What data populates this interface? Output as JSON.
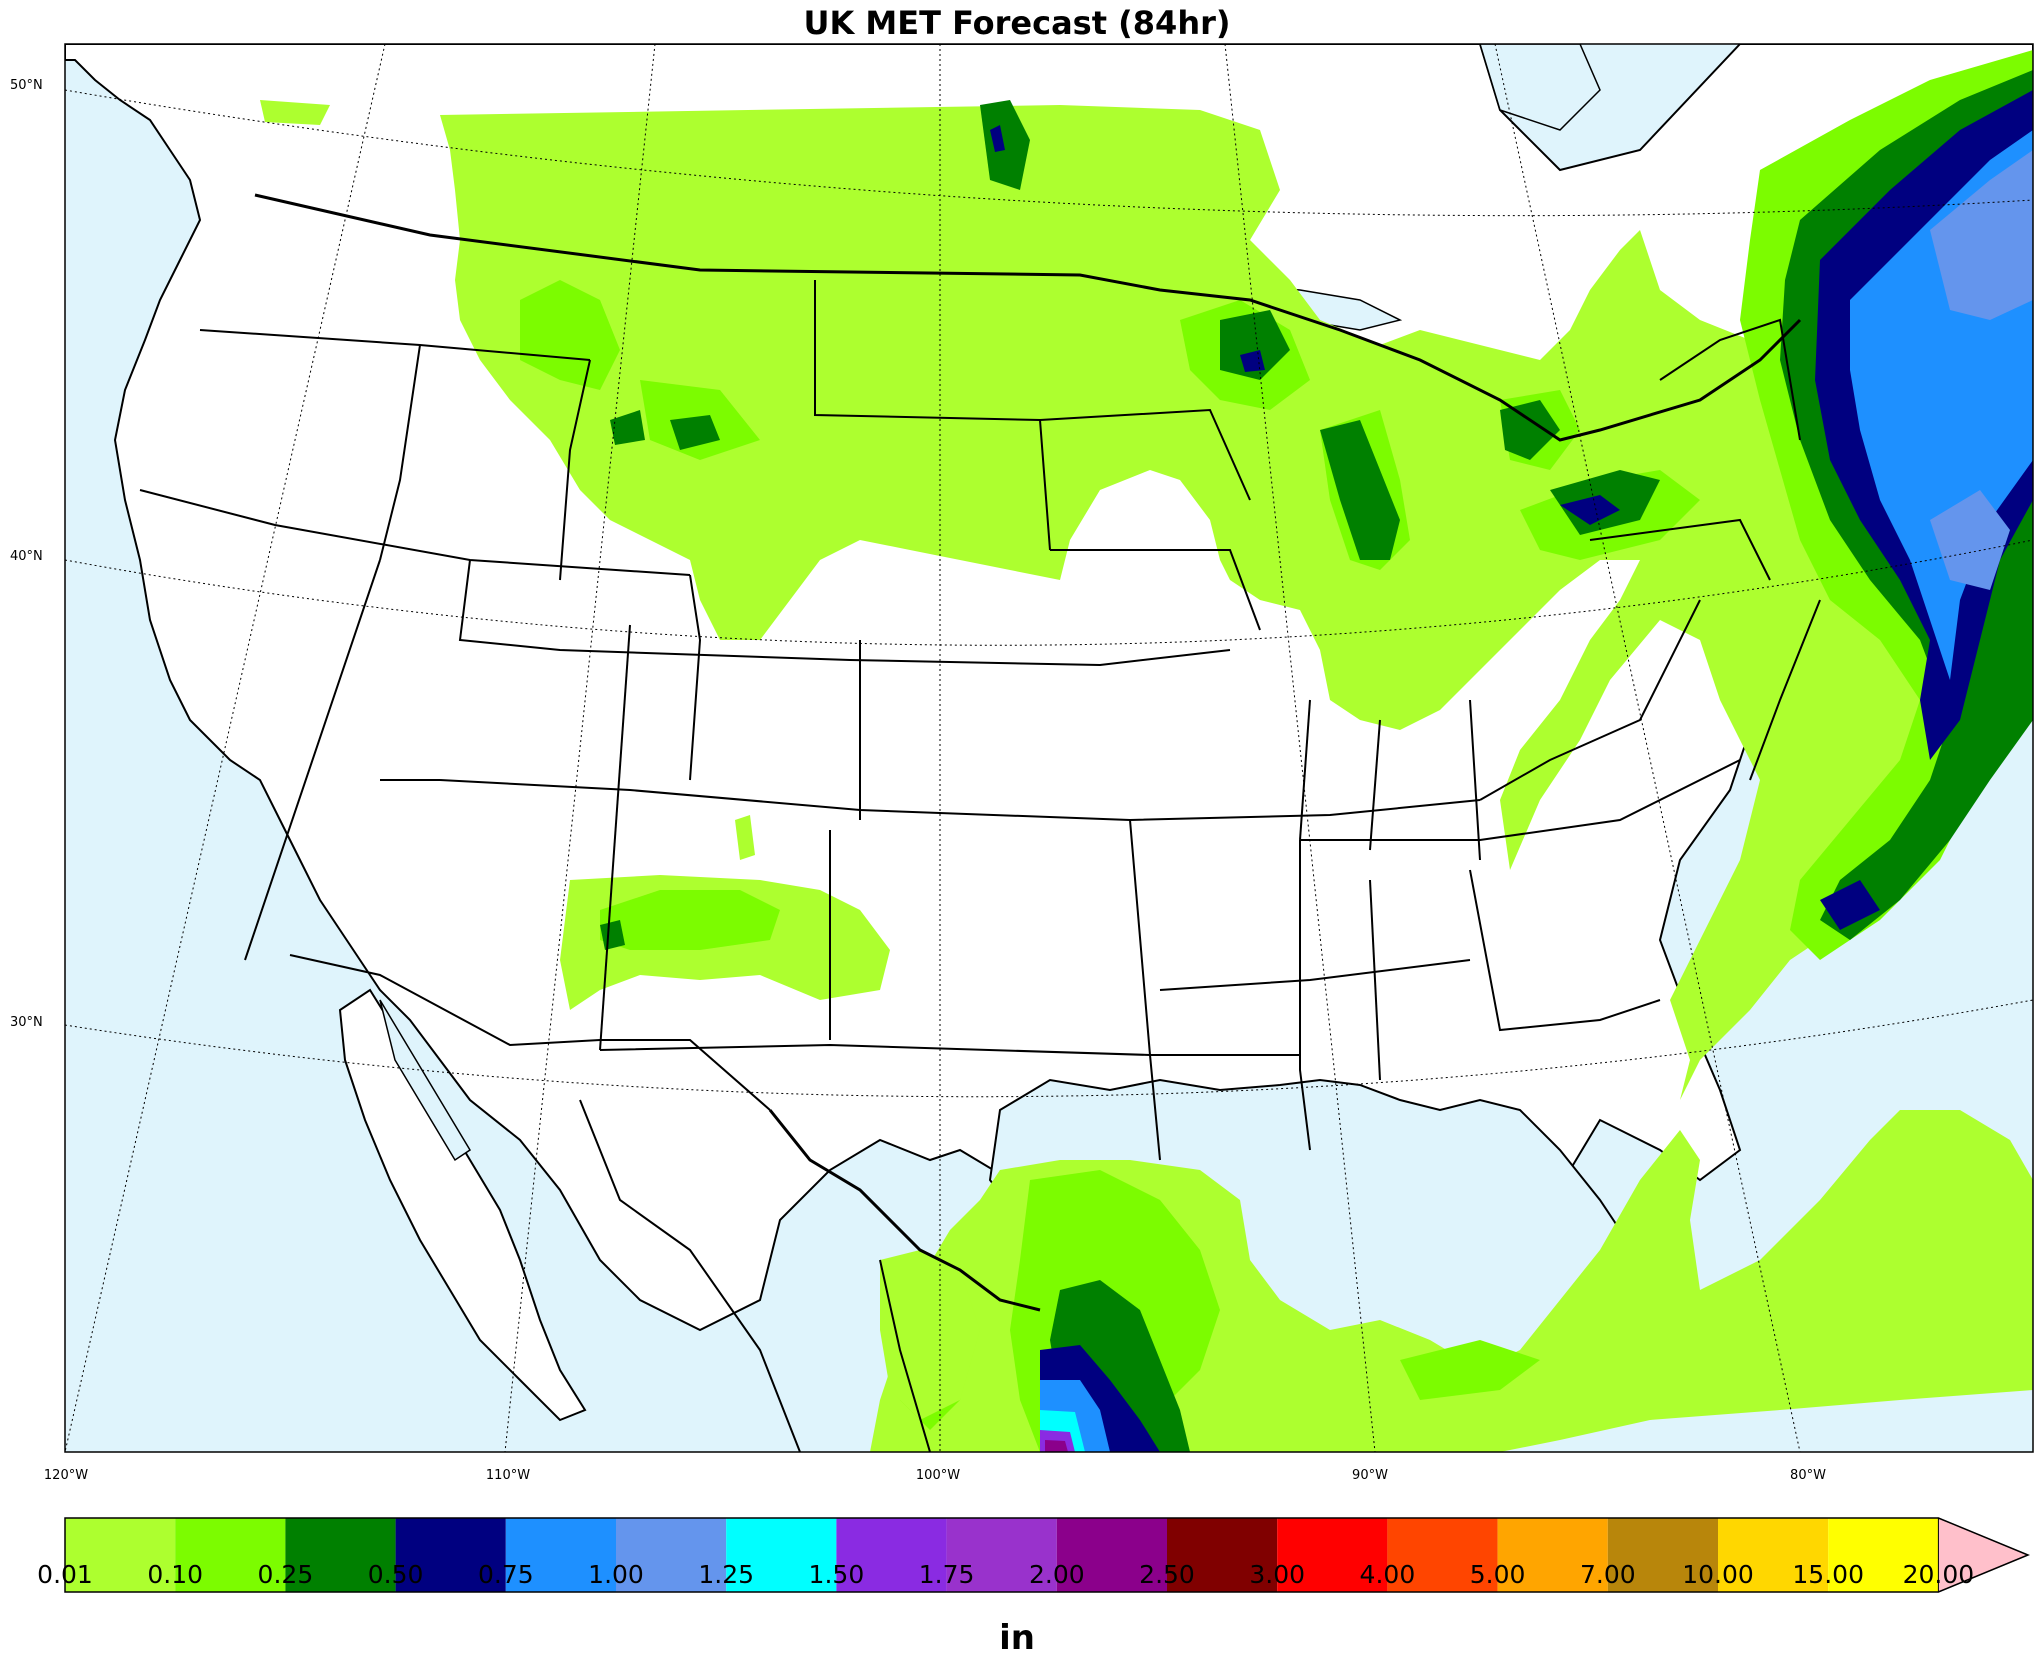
{
  "title": "UK MET Forecast (84hr)",
  "colors": {
    "ocean": "#dff4fc",
    "land": "#ffffff",
    "boundary": "#000000"
  },
  "lon_labels": [
    "120°W",
    "110°W",
    "100°W",
    "90°W",
    "80°W"
  ],
  "lat_labels": [
    "50°N",
    "40°N",
    "30°N"
  ],
  "legend": {
    "units": "in",
    "bins": [
      {
        "label": "0.01",
        "color": "#adff2f"
      },
      {
        "label": "0.10",
        "color": "#7cfc00"
      },
      {
        "label": "0.25",
        "color": "#008000"
      },
      {
        "label": "0.50",
        "color": "#000080"
      },
      {
        "label": "0.75",
        "color": "#1e90ff"
      },
      {
        "label": "1.00",
        "color": "#6495ed"
      },
      {
        "label": "1.25",
        "color": "#00ffff"
      },
      {
        "label": "1.50",
        "color": "#8a2be2"
      },
      {
        "label": "1.75",
        "color": "#9932cc"
      },
      {
        "label": "2.00",
        "color": "#8b008b"
      },
      {
        "label": "2.50",
        "color": "#800000"
      },
      {
        "label": "3.00",
        "color": "#ff0000"
      },
      {
        "label": "4.00",
        "color": "#ff4500"
      },
      {
        "label": "5.00",
        "color": "#ffa500"
      },
      {
        "label": "7.00",
        "color": "#b8860b"
      },
      {
        "label": "10.00",
        "color": "#ffd700"
      },
      {
        "label": "15.00",
        "color": "#ffff00"
      }
    ],
    "last_label": "20.00",
    "extend_color": "#ffc0cb"
  }
}
